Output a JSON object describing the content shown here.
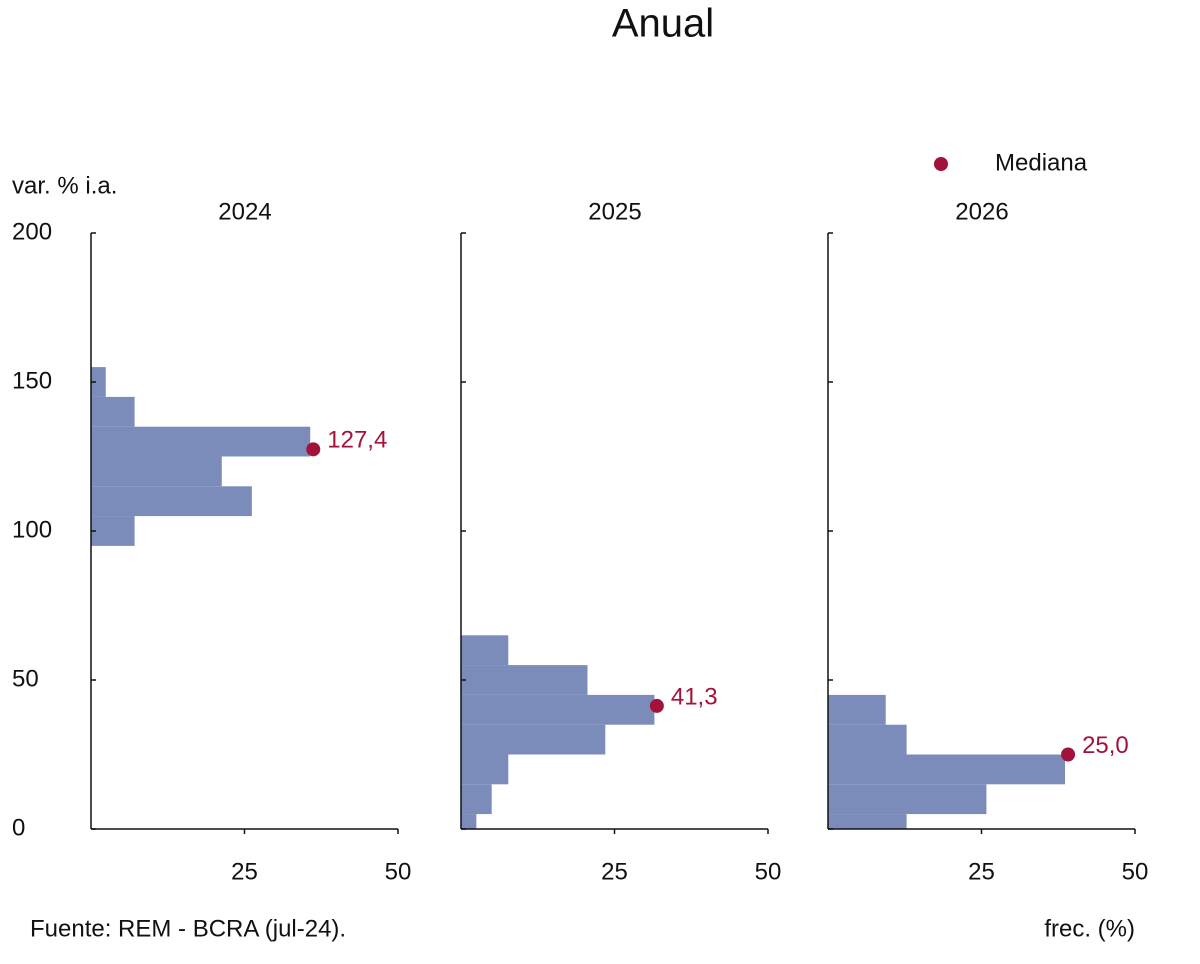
{
  "title": "Anual",
  "legend": "Mediana",
  "source": "Fuente: REM - BCRA (jul-24).",
  "chart_data": [
    {
      "type": "histogram",
      "title": "2024",
      "ylabel": "var. % i.a.",
      "bins": [
        95,
        105,
        115,
        125,
        135,
        145,
        155
      ],
      "values": [
        7.1,
        26.2,
        21.3,
        35.7,
        7.1,
        2.4
      ],
      "color": "#7b8cba",
      "median": {
        "value": 127.4,
        "label": "127,4",
        "freq": 36.2,
        "color": "#a3123a"
      },
      "xlim": [
        0,
        50
      ],
      "xticks": [
        25,
        50
      ],
      "ylim": [
        0,
        200
      ],
      "yticks": [
        0,
        50,
        100,
        150,
        200
      ]
    },
    {
      "type": "histogram",
      "title": "2025",
      "bins": [
        0,
        5,
        15,
        25,
        35,
        45,
        55,
        65
      ],
      "values": [
        2.5,
        5.0,
        7.7,
        23.5,
        31.5,
        20.6,
        7.7
      ],
      "color": "#7b8cba",
      "median": {
        "value": 41.3,
        "label": "41,3",
        "freq": 31.9,
        "color": "#a3123a"
      },
      "xlim": [
        0,
        50
      ],
      "xticks": [
        25,
        50
      ],
      "ylim": [
        0,
        200
      ],
      "yticks": [
        0,
        50,
        100,
        150,
        200
      ]
    },
    {
      "type": "histogram",
      "title": "2026",
      "xlabel": "frec. (%)",
      "bins": [
        0,
        5,
        15,
        25,
        35,
        45
      ],
      "values": [
        12.8,
        25.8,
        38.6,
        12.8,
        9.4
      ],
      "color": "#7b8cba",
      "median": {
        "value": 25.0,
        "label": "25,0",
        "freq": 39.1,
        "color": "#a3123a"
      },
      "xlim": [
        0,
        50
      ],
      "xticks": [
        25,
        50
      ],
      "ylim": [
        0,
        200
      ],
      "yticks": [
        0,
        50,
        100,
        150,
        200
      ]
    }
  ]
}
